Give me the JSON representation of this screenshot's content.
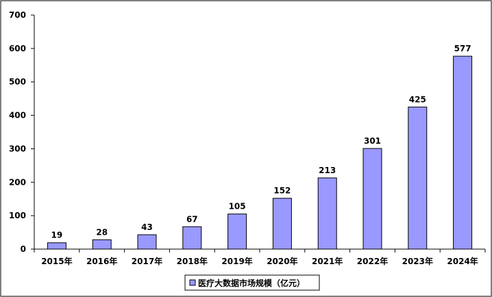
{
  "chart_data": {
    "type": "bar",
    "categories": [
      "2015年",
      "2016年",
      "2017年",
      "2018年",
      "2019年",
      "2020年",
      "2021年",
      "2022年",
      "2023年",
      "2024年"
    ],
    "series": [
      {
        "name": "医疗大数据市场规模（亿元）",
        "values": [
          19,
          28,
          43,
          67,
          105,
          152,
          213,
          301,
          425,
          577
        ]
      }
    ],
    "title": "",
    "xlabel": "",
    "ylabel": "",
    "ylim": [
      0,
      700
    ],
    "yticks": [
      0,
      100,
      200,
      300,
      400,
      500,
      600,
      700
    ],
    "grid": false,
    "legend_position": "bottom",
    "bar_color": "#9999ff",
    "bar_border_color": "#000000"
  }
}
